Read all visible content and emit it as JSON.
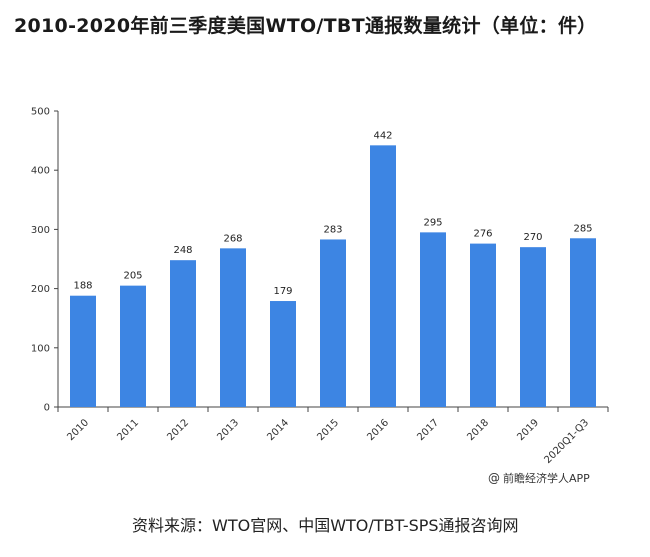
{
  "title": "2010-2020年前三季度美国WTO/TBT通报数量统计（单位：件）",
  "credit": "前瞻经济学人APP",
  "source": "资料来源：WTO官网、中国WTO/TBT-SPS通报咨询网",
  "colors": {
    "bar": "#3d85e3",
    "axis": "#444444"
  },
  "chart_data": {
    "type": "bar",
    "title": "2010-2020年前三季度美国WTO/TBT通报数量统计（单位：件）",
    "categories": [
      "2010",
      "2011",
      "2012",
      "2013",
      "2014",
      "2015",
      "2016",
      "2017",
      "2018",
      "2019",
      "2020Q1-Q3"
    ],
    "values": [
      188,
      205,
      248,
      268,
      179,
      283,
      442,
      295,
      276,
      270,
      285
    ],
    "ylim": [
      0,
      500
    ],
    "yticks": [
      0,
      100,
      200,
      300,
      400,
      500
    ],
    "grid": false,
    "legend": "none"
  }
}
